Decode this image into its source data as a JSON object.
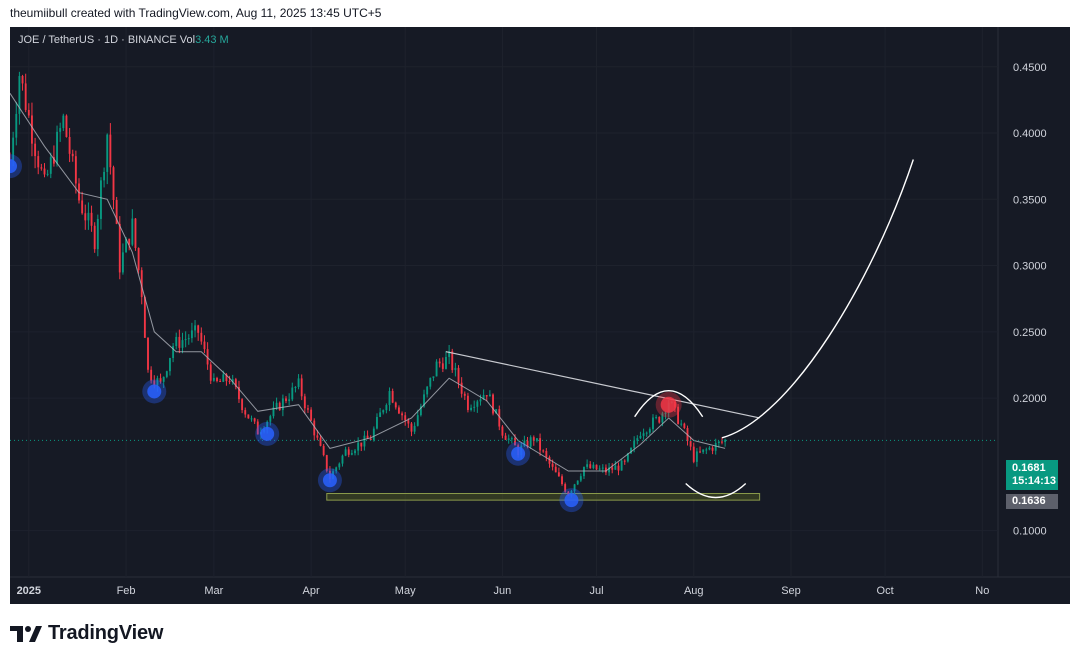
{
  "header": {
    "attribution": "theumiibull created with TradingView.com, Aug 11, 2025 13:45 UTC+5"
  },
  "symbol": {
    "label": "JOE / TetherUS · 1D · BINANCE",
    "vol_label": "Vol",
    "vol_value": "3.43 M"
  },
  "price_tags": {
    "last_price": "0.1681",
    "countdown": "15:14:13",
    "ma_value": "0.1636"
  },
  "footer": {
    "brand": "TradingView"
  },
  "colors": {
    "background": "#161a25",
    "up": "#089981",
    "down": "#f23645",
    "grid": "#1e222d",
    "axis_text": "#d1d4dc",
    "ma_line": "#b2b5be",
    "marker_blue": "#2962ff",
    "marker_red": "#f23645",
    "support_zone": "#4b5320"
  },
  "chart_data": {
    "type": "candlestick",
    "x_ticks": [
      "2025",
      "Feb",
      "Mar",
      "Apr",
      "May",
      "Jun",
      "Jul",
      "Aug",
      "Sep",
      "Oct",
      "No"
    ],
    "y_ticks": [
      "0.4500",
      "0.4000",
      "0.3500",
      "0.3000",
      "0.2500",
      "0.2000",
      "0.1000"
    ],
    "ylim": [
      0.065,
      0.48
    ],
    "x_range": [
      "2024-12-26",
      "2025-11-06"
    ],
    "last_price": 0.1681,
    "close_path": [
      [
        "2024-12-26",
        0.38
      ],
      [
        "2024-12-29",
        0.445
      ],
      [
        "2025-01-03",
        0.39
      ],
      [
        "2025-01-06",
        0.36
      ],
      [
        "2025-01-12",
        0.41
      ],
      [
        "2025-01-17",
        0.35
      ],
      [
        "2025-01-22",
        0.32
      ],
      [
        "2025-01-26",
        0.4
      ],
      [
        "2025-01-30",
        0.3
      ],
      [
        "2025-02-03",
        0.33
      ],
      [
        "2025-02-06",
        0.28
      ],
      [
        "2025-02-08",
        0.22
      ],
      [
        "2025-02-12",
        0.21
      ],
      [
        "2025-02-16",
        0.24
      ],
      [
        "2025-02-24",
        0.25
      ],
      [
        "2025-03-01",
        0.21
      ],
      [
        "2025-03-06",
        0.215
      ],
      [
        "2025-03-11",
        0.19
      ],
      [
        "2025-03-15",
        0.175
      ],
      [
        "2025-03-22",
        0.195
      ],
      [
        "2025-03-28",
        0.21
      ],
      [
        "2025-04-02",
        0.175
      ],
      [
        "2025-04-07",
        0.14
      ],
      [
        "2025-04-12",
        0.16
      ],
      [
        "2025-04-20",
        0.17
      ],
      [
        "2025-04-26",
        0.205
      ],
      [
        "2025-05-03",
        0.175
      ],
      [
        "2025-05-11",
        0.225
      ],
      [
        "2025-05-15",
        0.23
      ],
      [
        "2025-05-21",
        0.195
      ],
      [
        "2025-05-27",
        0.205
      ],
      [
        "2025-06-01",
        0.175
      ],
      [
        "2025-06-06",
        0.16
      ],
      [
        "2025-06-11",
        0.17
      ],
      [
        "2025-06-16",
        0.15
      ],
      [
        "2025-06-22",
        0.128
      ],
      [
        "2025-06-27",
        0.148
      ],
      [
        "2025-07-04",
        0.145
      ],
      [
        "2025-07-10",
        0.15
      ],
      [
        "2025-07-15",
        0.175
      ],
      [
        "2025-07-21",
        0.185
      ],
      [
        "2025-07-24",
        0.198
      ],
      [
        "2025-07-28",
        0.18
      ],
      [
        "2025-08-01",
        0.155
      ],
      [
        "2025-08-06",
        0.162
      ],
      [
        "2025-08-11",
        0.168
      ]
    ],
    "moving_average": [
      [
        "2024-12-26",
        0.43
      ],
      [
        "2025-01-06",
        0.39
      ],
      [
        "2025-01-17",
        0.355
      ],
      [
        "2025-01-26",
        0.35
      ],
      [
        "2025-02-03",
        0.31
      ],
      [
        "2025-02-10",
        0.25
      ],
      [
        "2025-02-17",
        0.235
      ],
      [
        "2025-02-25",
        0.235
      ],
      [
        "2025-03-06",
        0.215
      ],
      [
        "2025-03-15",
        0.19
      ],
      [
        "2025-03-28",
        0.195
      ],
      [
        "2025-04-07",
        0.162
      ],
      [
        "2025-04-20",
        0.17
      ],
      [
        "2025-05-03",
        0.185
      ],
      [
        "2025-05-15",
        0.215
      ],
      [
        "2025-05-27",
        0.198
      ],
      [
        "2025-06-06",
        0.168
      ],
      [
        "2025-06-22",
        0.145
      ],
      [
        "2025-07-04",
        0.145
      ],
      [
        "2025-07-15",
        0.165
      ],
      [
        "2025-07-24",
        0.185
      ],
      [
        "2025-08-01",
        0.168
      ],
      [
        "2025-08-11",
        0.162
      ]
    ],
    "annotations": {
      "swing_low_markers": [
        [
          "2024-12-26",
          0.375
        ],
        [
          "2025-02-10",
          0.205
        ],
        [
          "2025-03-18",
          0.173
        ],
        [
          "2025-04-07",
          0.138
        ],
        [
          "2025-06-06",
          0.158
        ],
        [
          "2025-06-23",
          0.123
        ]
      ],
      "swing_high_marker": [
        "2025-07-24",
        0.195
      ],
      "descending_trendline": [
        [
          "2025-05-14",
          0.235
        ],
        [
          "2025-08-22",
          0.185
        ]
      ],
      "support_zone": {
        "from": "2025-04-06",
        "to": "2025-08-22",
        "low": 0.123,
        "high": 0.128
      },
      "projection_curve": [
        [
          "2025-08-10",
          0.17
        ],
        [
          "2025-10-10",
          0.38
        ]
      ]
    }
  }
}
